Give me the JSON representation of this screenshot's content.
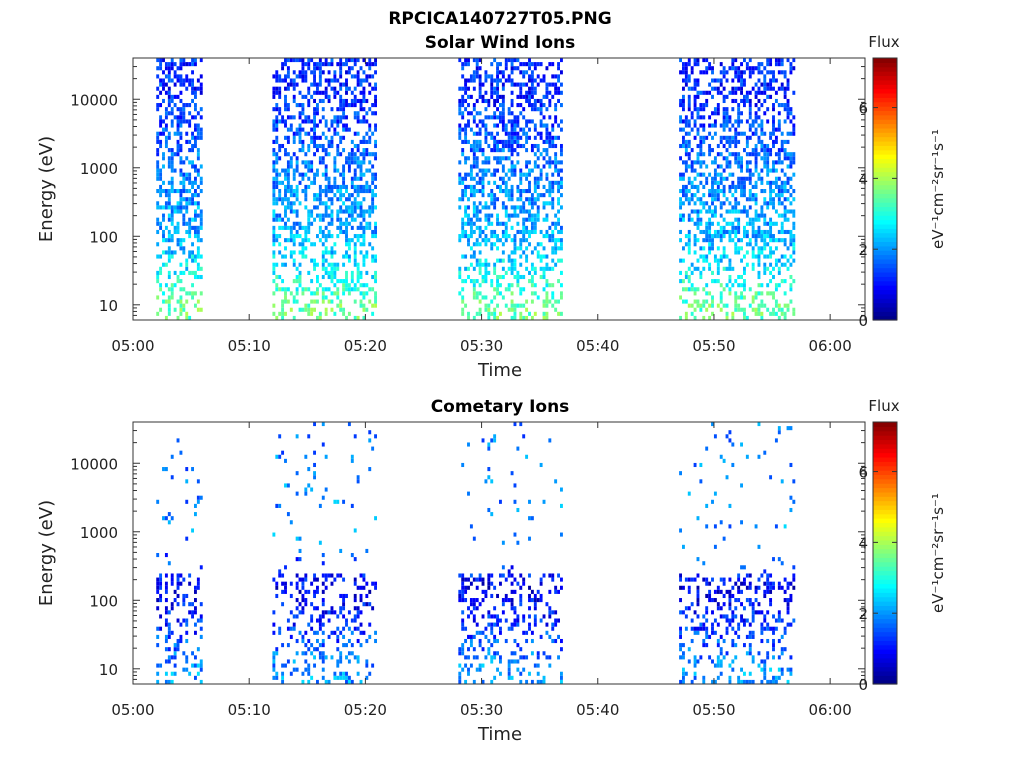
{
  "figure_title": "RPCICA140727T05.PNG",
  "colormap": [
    "#00007f",
    "#0000ff",
    "#007fff",
    "#00ffff",
    "#7fff7f",
    "#ffff00",
    "#ff7f00",
    "#ff0000",
    "#7f0000"
  ],
  "chart_data": [
    {
      "type": "heatmap",
      "title": "Solar Wind Ions",
      "xlabel": "Time",
      "ylabel": "Energy (eV)",
      "x_ticks": [
        "05:00",
        "05:10",
        "05:20",
        "05:30",
        "05:40",
        "05:50",
        "06:00"
      ],
      "y_ticks": [
        "10",
        "100",
        "1000",
        "10000"
      ],
      "yscale": "log",
      "xlim": [
        "05:00",
        "06:03"
      ],
      "ylim": [
        6,
        40000
      ],
      "colorbar": {
        "label": "Flux",
        "units": "eV⁻¹cm⁻²sr⁻¹s⁻¹",
        "ticks": [
          "0",
          "2",
          "4",
          "6"
        ],
        "range": [
          0,
          7.4
        ]
      },
      "active_intervals": [
        [
          "05:02",
          "05:06"
        ],
        [
          "05:12",
          "05:21"
        ],
        [
          "05:28",
          "05:37"
        ],
        [
          "05:47",
          "05:57"
        ]
      ],
      "typical_flux_by_energy": [
        {
          "energy": 10,
          "flux": 3.5
        },
        {
          "energy": 30,
          "flux": 2.7
        },
        {
          "energy": 100,
          "flux": 2.2
        },
        {
          "energy": 1000,
          "flux": 1.8
        },
        {
          "energy": 10000,
          "flux": 1.2
        }
      ]
    },
    {
      "type": "heatmap",
      "title": "Cometary Ions",
      "xlabel": "Time",
      "ylabel": "Energy (eV)",
      "x_ticks": [
        "05:00",
        "05:10",
        "05:20",
        "05:30",
        "05:40",
        "05:50",
        "06:00"
      ],
      "y_ticks": [
        "10",
        "100",
        "1000",
        "10000"
      ],
      "yscale": "log",
      "xlim": [
        "05:00",
        "06:03"
      ],
      "ylim": [
        6,
        40000
      ],
      "colorbar": {
        "label": "Flux",
        "units": "eV⁻¹cm⁻²sr⁻¹s⁻¹",
        "ticks": [
          "0",
          "2",
          "4",
          "6"
        ],
        "range": [
          0,
          7.4
        ]
      },
      "active_intervals": [
        [
          "05:02",
          "05:06"
        ],
        [
          "05:12",
          "05:21"
        ],
        [
          "05:28",
          "05:37"
        ],
        [
          "05:47",
          "05:57"
        ]
      ],
      "typical_flux_by_energy": [
        {
          "energy": 10,
          "flux": 2.0
        },
        {
          "energy": 30,
          "flux": 1.4
        },
        {
          "energy": 150,
          "flux": 0.8
        },
        {
          "energy": 1000,
          "flux": 2.0
        },
        {
          "energy": 10000,
          "flux": 1.8
        }
      ]
    }
  ]
}
